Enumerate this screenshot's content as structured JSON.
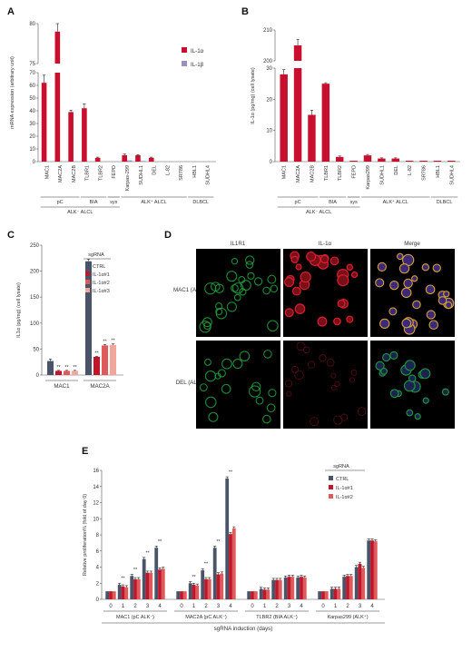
{
  "colors": {
    "red": "#c8102e",
    "purple": "#9b8ec4",
    "gray": "#4a5468",
    "darkred": "#c0162c",
    "midred": "#df5a5a",
    "lightred": "#f2a59a",
    "green": "#1f9a3a",
    "magenta": "#d81e2e"
  },
  "panels": {
    "A": "A",
    "B": "B",
    "C": "C",
    "D": "D",
    "E": "E"
  },
  "micro": {
    "columns": [
      "IL1R1",
      "IL-1α",
      "Merge"
    ],
    "rows": [
      "MAC1 (ALK⁺)",
      "DEL (ALK⁺)"
    ]
  },
  "chart_data": [
    {
      "id": "A",
      "type": "bar",
      "ylabel": "mRNA expression (arbitrary unit)",
      "y_ticks_lower": [
        0,
        10,
        20,
        30,
        40,
        50,
        60,
        70
      ],
      "y_ticks_upper": [
        75,
        80
      ],
      "categories": [
        "MAC1",
        "MAC2A",
        "MAC2B",
        "TLBR1",
        "TLBR2",
        "FEPD",
        "Karpas-299",
        "SUDHL1",
        "DEL",
        "L-82",
        "SR786",
        "HBL1",
        "SUDHL4"
      ],
      "series": [
        {
          "name": "IL-1α",
          "values": [
            62,
            79,
            39,
            42,
            3,
            0,
            5,
            5,
            3,
            0,
            0,
            0,
            0
          ],
          "errors": [
            6,
            5,
            1.5,
            3.5,
            0.5,
            0,
            1,
            0.5,
            0.5,
            0,
            0,
            0,
            0
          ]
        },
        {
          "name": "IL-1β",
          "values": [
            0,
            0,
            0,
            0,
            0,
            0,
            1,
            0.5,
            0,
            0,
            0,
            0,
            0
          ],
          "errors": [
            0,
            0,
            0,
            0,
            0,
            0,
            0,
            0,
            0,
            0,
            0,
            0,
            0
          ]
        }
      ],
      "groups": [
        {
          "label": "pC",
          "from": 0,
          "to": 2
        },
        {
          "label": "BIA",
          "from": 3,
          "to": 4
        },
        {
          "label": "sys",
          "from": 5,
          "to": 5
        },
        {
          "label": "ALK⁺ ALCL",
          "from": 6,
          "to": 10
        },
        {
          "label": "DLBCL",
          "from": 11,
          "to": 12
        }
      ],
      "supergroups": [
        {
          "label": "ALK⁻ ALCL",
          "from": 0,
          "to": 5
        }
      ]
    },
    {
      "id": "B",
      "type": "bar",
      "ylabel": "IL-1α (pg/mg) (cell lysate)",
      "y_ticks_lower": [
        0,
        10,
        20,
        30
      ],
      "y_ticks_upper": [
        200,
        210
      ],
      "categories": [
        "MAC1",
        "MAC2A",
        "MAC2B",
        "TLBR1",
        "TLBR2",
        "FEPD",
        "Karpas299",
        "SUDHL1",
        "DEL",
        "L-82",
        "SR786",
        "HBL1",
        "SUDHL4"
      ],
      "series": [
        {
          "name": "IL-1α",
          "values": [
            28,
            205,
            15,
            25,
            1.5,
            0.3,
            2,
            1,
            1,
            0.3,
            0.3,
            0.3,
            0.3
          ],
          "errors": [
            1.5,
            2,
            1.5,
            0.3,
            0.3,
            0,
            0.3,
            0.2,
            0.2,
            0,
            0,
            0,
            0
          ]
        }
      ],
      "groups": [
        {
          "label": "pC",
          "from": 0,
          "to": 2
        },
        {
          "label": "BIA",
          "from": 3,
          "to": 4
        },
        {
          "label": "sys",
          "from": 5,
          "to": 5
        },
        {
          "label": "ALK⁺ ALCL",
          "from": 6,
          "to": 10
        },
        {
          "label": "DLBCL",
          "from": 11,
          "to": 12
        }
      ],
      "supergroups": [
        {
          "label": "ALK⁻ ALCL",
          "from": 0,
          "to": 5
        }
      ]
    },
    {
      "id": "C",
      "type": "bar",
      "ylabel": "IL1α (pg/mg) (cell lysate)",
      "y_ticks": [
        0,
        50,
        100,
        150,
        200,
        250
      ],
      "ylim": [
        0,
        250
      ],
      "categories": [
        "MAC1",
        "MAC2A"
      ],
      "legend_title": "sgRNA",
      "series": [
        {
          "name": "CTRL",
          "values": [
            27,
            219
          ],
          "errors": [
            4,
            4
          ]
        },
        {
          "name": "IL-1α#1",
          "values": [
            8,
            35
          ],
          "errors": [
            1,
            1
          ]
        },
        {
          "name": "IL-1α#2",
          "values": [
            8,
            57
          ],
          "errors": [
            1,
            2
          ]
        },
        {
          "name": "IL-1α#3",
          "values": [
            8,
            58
          ],
          "errors": [
            1,
            2
          ]
        }
      ],
      "sig": "**"
    },
    {
      "id": "E",
      "type": "bar",
      "ylabel": "Relative proliferation% (fold of day 0)",
      "y_ticks": [
        0,
        2,
        4,
        6,
        8,
        10,
        12,
        14,
        16
      ],
      "ylim": [
        0,
        16
      ],
      "xlabel": "sgRNA induction (days)",
      "days": [
        "0",
        "1",
        "2",
        "3",
        "4"
      ],
      "legend_title": "sgRNA",
      "groups": [
        {
          "label": "MAC1 (pC ALK⁻)",
          "CTRL": [
            1,
            1.8,
            2.9,
            5.0,
            6.4
          ],
          "IL-1α#1": [
            1,
            1.6,
            2.5,
            3.3,
            3.7
          ],
          "IL-1α#2": [
            1,
            1.5,
            2.5,
            3.3,
            3.8
          ]
        },
        {
          "label": "MAC2A (pC ALK⁻)",
          "CTRL": [
            1,
            2.0,
            3.6,
            6.4,
            15.0
          ],
          "IL-1α#1": [
            1,
            1.8,
            2.5,
            3.1,
            8.1
          ],
          "IL-1α#2": [
            1,
            1.7,
            2.5,
            3.2,
            8.8
          ]
        },
        {
          "label": "TLBR2 (BIA ALK⁻)",
          "CTRL": [
            1,
            1.3,
            2.4,
            2.7,
            2.7
          ],
          "IL-1α#1": [
            1,
            1.2,
            2.4,
            2.8,
            2.8
          ],
          "IL-1α#2": [
            1,
            1.2,
            2.4,
            2.8,
            2.7
          ]
        },
        {
          "label": "Karpas299 (ALK⁺)",
          "CTRL": [
            1,
            1.3,
            2.8,
            4.0,
            7.3
          ],
          "IL-1α#1": [
            1,
            1.3,
            2.9,
            4.4,
            7.3
          ],
          "IL-1α#2": [
            1,
            1.3,
            2.9,
            3.9,
            7.2
          ]
        }
      ],
      "series": [
        "CTRL",
        "IL-1α#1",
        "IL-1α#2"
      ]
    }
  ]
}
